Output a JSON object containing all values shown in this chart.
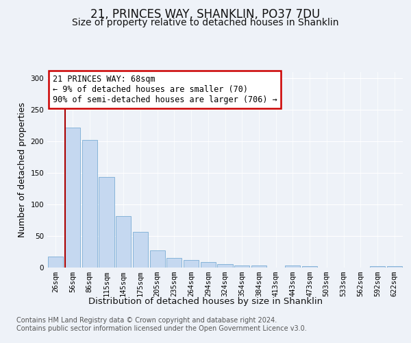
{
  "title": "21, PRINCES WAY, SHANKLIN, PO37 7DU",
  "subtitle": "Size of property relative to detached houses in Shanklin",
  "xlabel": "Distribution of detached houses by size in Shanklin",
  "ylabel": "Number of detached properties",
  "categories": [
    "26sqm",
    "56sqm",
    "86sqm",
    "115sqm",
    "145sqm",
    "175sqm",
    "205sqm",
    "235sqm",
    "264sqm",
    "294sqm",
    "324sqm",
    "354sqm",
    "384sqm",
    "413sqm",
    "443sqm",
    "473sqm",
    "503sqm",
    "533sqm",
    "562sqm",
    "592sqm",
    "622sqm"
  ],
  "values": [
    17,
    222,
    202,
    144,
    82,
    57,
    27,
    15,
    12,
    9,
    5,
    3,
    3,
    0,
    3,
    2,
    0,
    0,
    0,
    2,
    2
  ],
  "bar_color": "#c5d8f0",
  "bar_edge_color": "#7aadd4",
  "vline_x_index": 1,
  "vline_color": "#aa0000",
  "annotation_text": "21 PRINCES WAY: 68sqm\n← 9% of detached houses are smaller (70)\n90% of semi-detached houses are larger (706) →",
  "annotation_box_facecolor": "#ffffff",
  "annotation_box_edgecolor": "#cc0000",
  "ylim": [
    0,
    310
  ],
  "yticks": [
    0,
    50,
    100,
    150,
    200,
    250,
    300
  ],
  "footer_text": "Contains HM Land Registry data © Crown copyright and database right 2024.\nContains public sector information licensed under the Open Government Licence v3.0.",
  "background_color": "#eef2f8",
  "plot_bg_color": "#eef2f8",
  "title_fontsize": 12,
  "subtitle_fontsize": 10,
  "xlabel_fontsize": 9.5,
  "ylabel_fontsize": 9,
  "tick_fontsize": 7.5,
  "annotation_fontsize": 8.5,
  "footer_fontsize": 7
}
